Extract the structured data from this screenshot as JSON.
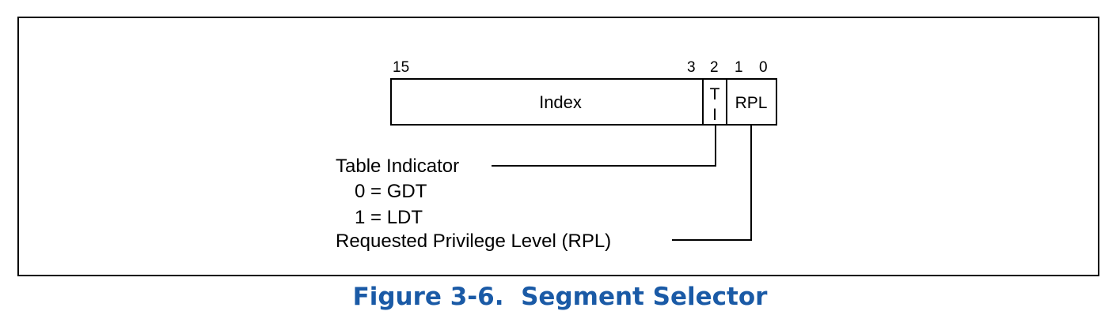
{
  "figure": {
    "caption": "Figure 3-6.  Segment Selector"
  },
  "bit_labels": {
    "b15": "15",
    "b3": "3",
    "b2": "2",
    "b1": "1",
    "b0": "0"
  },
  "fields": {
    "index": "Index",
    "ti_top": "T",
    "ti_bottom": "I",
    "rpl": "RPL"
  },
  "annotations": {
    "table_indicator": "Table Indicator",
    "gdt": "0 = GDT",
    "ldt": "1 = LDT",
    "rpl_desc": "Requested Privilege Level (RPL)"
  },
  "colors": {
    "caption": "#1a5aa6",
    "lines": "#000000"
  }
}
